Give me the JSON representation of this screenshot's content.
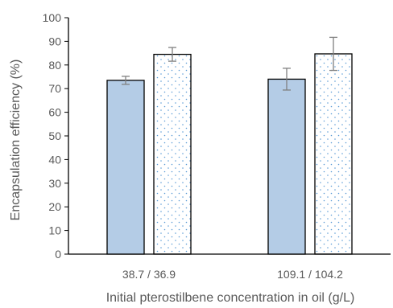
{
  "chart_data": {
    "type": "bar",
    "categories": [
      "38.7 / 36.9",
      "109.1 / 104.2"
    ],
    "series": [
      {
        "values": [
          73.5,
          74.0
        ],
        "errors": [
          1.7,
          4.6
        ],
        "fill": "#b4cce6",
        "pattern": "solid"
      },
      {
        "values": [
          84.5,
          84.7
        ],
        "errors": [
          2.9,
          7.0
        ],
        "fill": "#ffffff",
        "pattern": "dotted"
      }
    ],
    "xlabel": "Initial pterostilbene concentration in oil (g/L)",
    "ylabel": "Encapsulation efficiency (%)",
    "ylim": [
      0,
      100
    ],
    "yticks": [
      0,
      10,
      20,
      30,
      40,
      50,
      60,
      70,
      80,
      90,
      100
    ],
    "grid": false,
    "colors": {
      "bar_stroke": "#000000",
      "dot": "#5b9bd5",
      "error_bar": "#808080",
      "axis": "#000000",
      "text": "#595959"
    }
  }
}
